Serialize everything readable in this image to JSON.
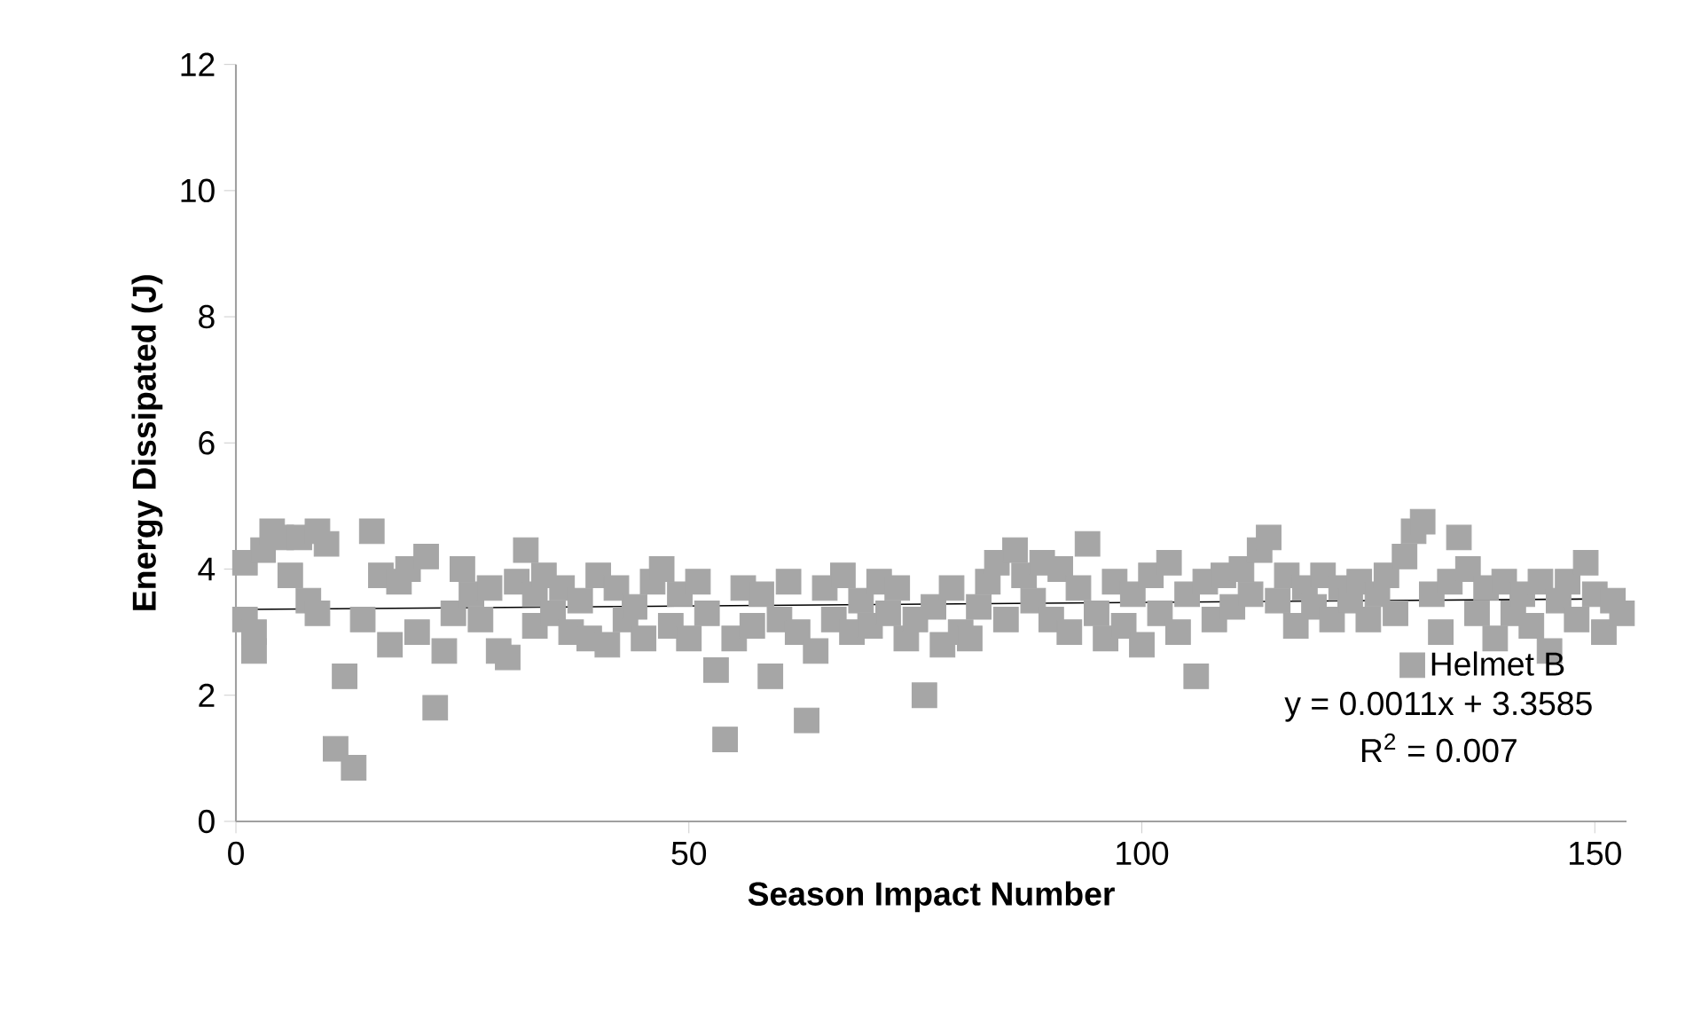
{
  "chart_data": {
    "type": "scatter",
    "xlabel": "Season Impact Number",
    "ylabel": "Energy Dissipated (J)",
    "xlim": [
      0,
      153.5
    ],
    "ylim": [
      0,
      12
    ],
    "xticks": [
      0,
      50,
      100,
      150
    ],
    "yticks": [
      0,
      2,
      4,
      6,
      8,
      10,
      12
    ],
    "grid": false,
    "legend": "bottom right",
    "annotations": [
      "y = 0.0011x + 3.3585",
      "R$^{2}$ = 0.007"
    ],
    "series": [
      {
        "name": "Helmet B",
        "color": "#a6a6a6",
        "type": "scatter",
        "marker": "square",
        "x": [
          1,
          1,
          2,
          2,
          3,
          4,
          5,
          6,
          7,
          8,
          9,
          9,
          10,
          11,
          12,
          13,
          14,
          15,
          16,
          17,
          18,
          19,
          20,
          21,
          22,
          23,
          24,
          25,
          26,
          27,
          28,
          29,
          30,
          31,
          32,
          33,
          33,
          34,
          35,
          36,
          37,
          38,
          39,
          40,
          41,
          42,
          43,
          44,
          45,
          46,
          47,
          48,
          49,
          50,
          51,
          52,
          53,
          54,
          55,
          56,
          57,
          58,
          59,
          60,
          61,
          62,
          63,
          64,
          65,
          66,
          67,
          68,
          69,
          70,
          71,
          72,
          73,
          74,
          75,
          76,
          77,
          78,
          79,
          80,
          81,
          82,
          83,
          84,
          85,
          86,
          87,
          88,
          89,
          90,
          91,
          92,
          93,
          94,
          95,
          96,
          97,
          98,
          99,
          100,
          101,
          102,
          103,
          104,
          105,
          106,
          107,
          108,
          109,
          110,
          111,
          112,
          113,
          114,
          115,
          116,
          117,
          118,
          119,
          120,
          121,
          122,
          123,
          124,
          125,
          126,
          127,
          128,
          129,
          130,
          131,
          132,
          133,
          134,
          135,
          136,
          137,
          138,
          139,
          140,
          141,
          142,
          143,
          144,
          145,
          146,
          147,
          148,
          149,
          150,
          151,
          152,
          153
        ],
        "values": [
          4.1,
          3.2,
          2.7,
          3.0,
          4.3,
          4.6,
          4.5,
          3.9,
          4.5,
          3.5,
          4.6,
          3.3,
          4.4,
          1.15,
          2.3,
          0.85,
          3.2,
          4.6,
          3.9,
          2.8,
          3.8,
          4.0,
          3.0,
          4.2,
          1.8,
          2.7,
          3.3,
          4.0,
          3.6,
          3.2,
          3.7,
          2.7,
          2.6,
          3.8,
          4.3,
          3.1,
          3.6,
          3.9,
          3.3,
          3.7,
          3.0,
          3.5,
          2.9,
          3.9,
          2.8,
          3.7,
          3.2,
          3.4,
          2.9,
          3.8,
          4.0,
          3.1,
          3.6,
          2.9,
          3.8,
          3.3,
          2.4,
          1.3,
          2.9,
          3.7,
          3.1,
          3.6,
          2.3,
          3.2,
          3.8,
          3.0,
          1.6,
          2.7,
          3.7,
          3.2,
          3.9,
          3.0,
          3.5,
          3.1,
          3.8,
          3.3,
          3.7,
          2.9,
          3.2,
          2.0,
          3.4,
          2.8,
          3.7,
          3.0,
          2.9,
          3.4,
          3.8,
          4.1,
          3.2,
          4.3,
          3.9,
          3.5,
          4.1,
          3.2,
          4.0,
          3.0,
          3.7,
          4.4,
          3.3,
          2.9,
          3.8,
          3.1,
          3.6,
          2.8,
          3.9,
          3.3,
          4.1,
          3.0,
          3.6,
          2.3,
          3.8,
          3.2,
          3.9,
          3.4,
          4.0,
          3.6,
          4.3,
          4.5,
          3.5,
          3.9,
          3.1,
          3.7,
          3.4,
          3.9,
          3.2,
          3.7,
          3.5,
          3.8,
          3.2,
          3.6,
          3.9,
          3.3,
          4.2,
          4.6,
          4.75,
          3.6,
          3.0,
          3.8,
          4.5,
          4.0,
          3.3,
          3.7,
          2.9,
          3.8,
          3.3,
          3.6,
          3.1,
          3.8,
          2.7,
          3.5,
          3.8,
          3.2,
          4.1,
          3.6,
          3.0,
          3.5,
          3.3
        ]
      },
      {
        "color": "#000000",
        "type": "line",
        "marker": "none",
        "x": [
          1,
          153
        ],
        "values": [
          3.36,
          3.53
        ]
      }
    ]
  }
}
